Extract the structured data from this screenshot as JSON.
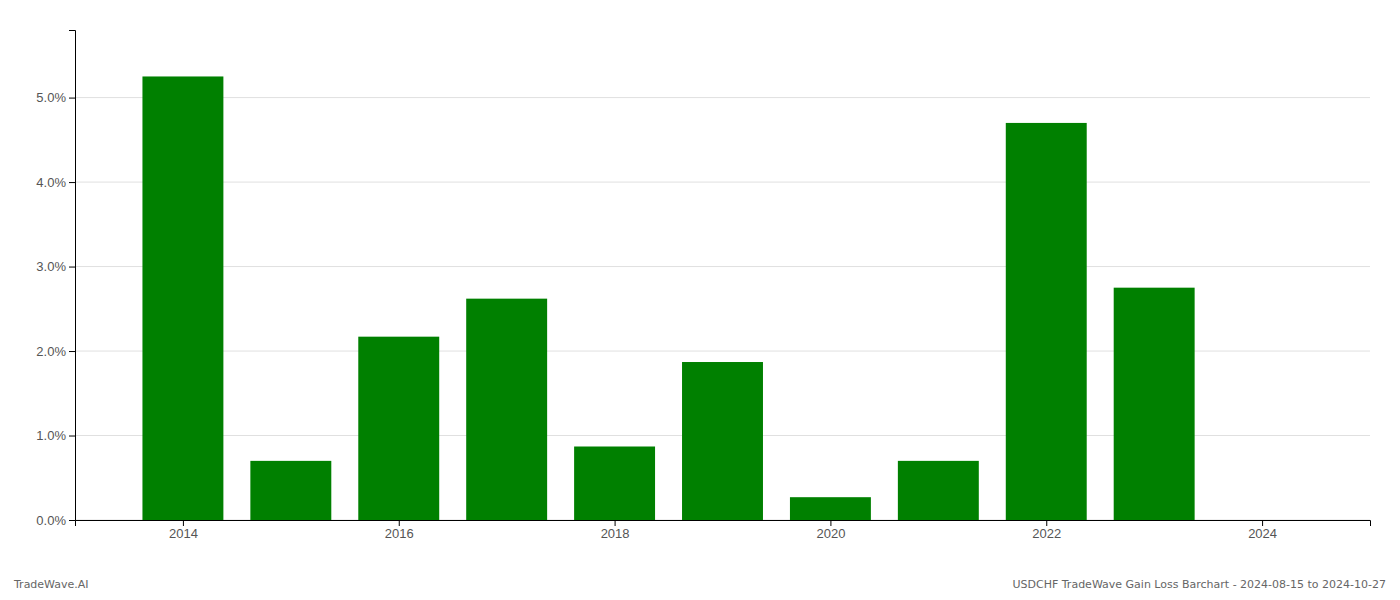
{
  "chart_data": {
    "type": "bar",
    "x": [
      2014,
      2015,
      2016,
      2017,
      2018,
      2019,
      2020,
      2021,
      2022,
      2023,
      2024
    ],
    "values": [
      5.25,
      0.7,
      2.17,
      2.62,
      0.87,
      1.87,
      0.27,
      0.7,
      4.7,
      2.75,
      0.0
    ],
    "color": "#008000",
    "xlim": [
      2013.0,
      2025.0
    ],
    "xticks": [
      2014,
      2016,
      2018,
      2020,
      2022,
      2024
    ],
    "ylim": [
      0.0,
      5.8
    ],
    "yticks": [
      {
        "value": 0.0,
        "label": "0.0%"
      },
      {
        "value": 1.0,
        "label": "1.0%"
      },
      {
        "value": 2.0,
        "label": "2.0%"
      },
      {
        "value": 3.0,
        "label": "3.0%"
      },
      {
        "value": 4.0,
        "label": "4.0%"
      },
      {
        "value": 5.0,
        "label": "5.0%"
      }
    ],
    "grid": true,
    "annotations": [
      "TradeWave.AI",
      "USDCHF TradeWave Gain Loss Barchart - 2024-08-15 to 2024-10-27"
    ]
  }
}
